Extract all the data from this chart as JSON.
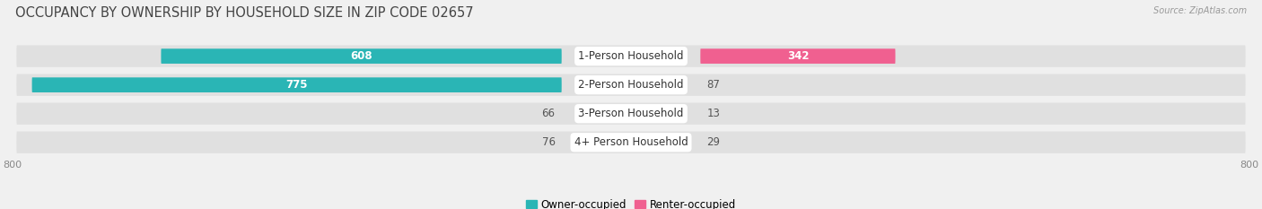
{
  "title": "OCCUPANCY BY OWNERSHIP BY HOUSEHOLD SIZE IN ZIP CODE 02657",
  "source": "Source: ZipAtlas.com",
  "categories": [
    "1-Person Household",
    "2-Person Household",
    "3-Person Household",
    "4+ Person Household"
  ],
  "owner_values": [
    608,
    775,
    66,
    76
  ],
  "renter_values": [
    342,
    87,
    13,
    29
  ],
  "owner_color_dark": "#2ab5b5",
  "owner_color_light": "#7dd4d4",
  "renter_color_dark": "#f06090",
  "renter_color_light": "#f8a8c0",
  "row_bg_color": "#e8e8e8",
  "background_color": "#f0f0f0",
  "axis_min": -800,
  "axis_max": 800,
  "legend_owner": "Owner-occupied",
  "legend_renter": "Renter-occupied",
  "title_fontsize": 10.5,
  "label_fontsize": 8.5,
  "tick_fontsize": 8,
  "value_threshold": 150
}
